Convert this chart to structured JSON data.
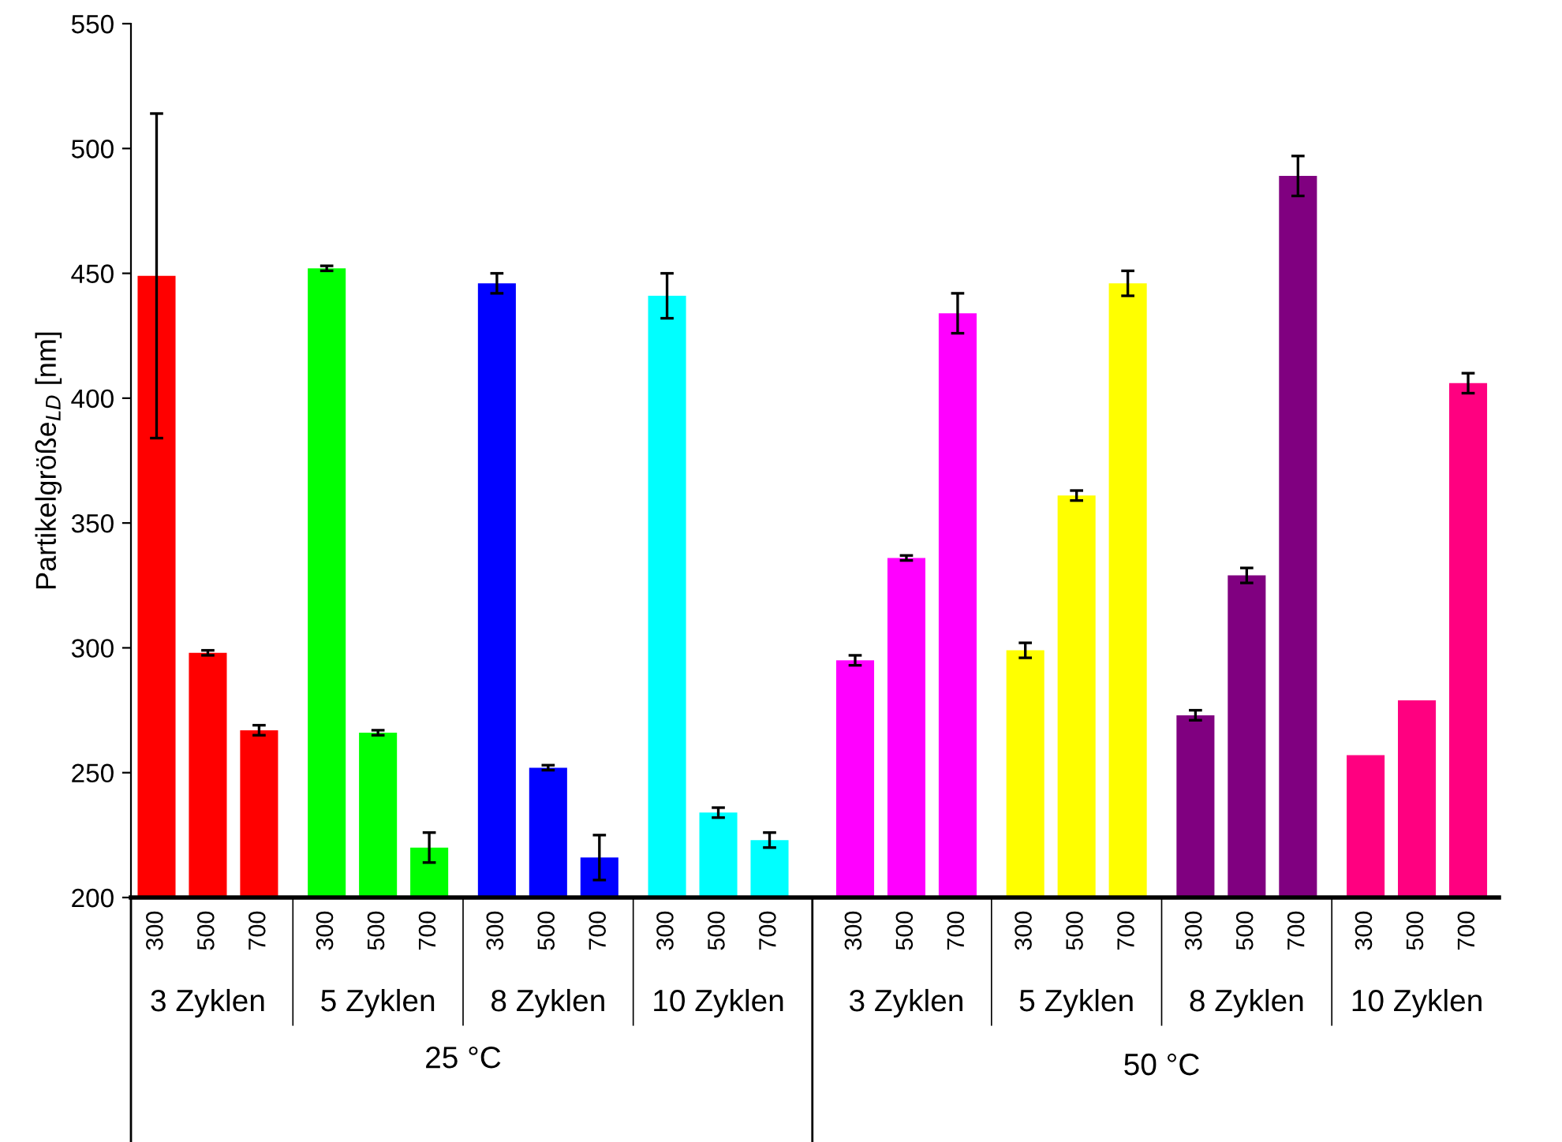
{
  "chart_data": {
    "type": "bar",
    "ylabel": "Partikelgröße$_{LD}$ [nm]",
    "categories": [
      "300",
      "500",
      "700",
      "300",
      "500",
      "700",
      "300",
      "500",
      "700",
      "300",
      "500",
      "700",
      "300",
      "500",
      "700",
      "300",
      "500",
      "700",
      "300",
      "500",
      "700",
      "300",
      "500",
      "700"
    ],
    "values": [
      449,
      298,
      267,
      452,
      266,
      220,
      446,
      252,
      216,
      441,
      234,
      223,
      295,
      336,
      434,
      299,
      361,
      446,
      273,
      329,
      489,
      257,
      279,
      406
    ],
    "errors": [
      65,
      1,
      2,
      1,
      1,
      6,
      4,
      1,
      9,
      9,
      2,
      3,
      2,
      1,
      8,
      3,
      2,
      5,
      2,
      3,
      8,
      null,
      null,
      4
    ],
    "colors": [
      "#ff0000",
      "#ff0000",
      "#ff0000",
      "#00ff00",
      "#00ff00",
      "#00ff00",
      "#0000ff",
      "#0000ff",
      "#0000ff",
      "#00ffff",
      "#00ffff",
      "#00ffff",
      "#ff00ff",
      "#ff00ff",
      "#ff00ff",
      "#ffff00",
      "#ffff00",
      "#ffff00",
      "#800080",
      "#800080",
      "#800080",
      "#ff0080",
      "#ff0080",
      "#ff0080"
    ],
    "ylim": [
      200,
      550
    ],
    "yticks": [
      200,
      250,
      300,
      350,
      400,
      450,
      500,
      550
    ],
    "grid": false,
    "legend": false,
    "annotations": [
      "3 Zyklen",
      "5 Zyklen",
      "8 Zyklen",
      "10 Zyklen",
      "3 Zyklen",
      "5 Zyklen",
      "8 Zyklen",
      "10 Zyklen",
      "25 °C",
      "50 °C"
    ]
  }
}
